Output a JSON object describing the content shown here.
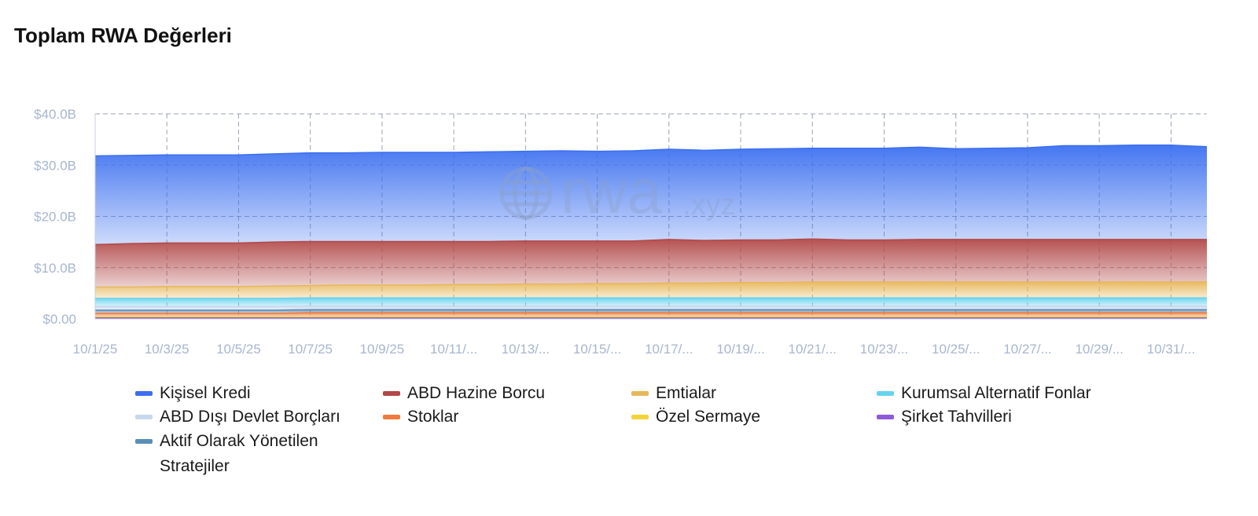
{
  "page": {
    "title": "Toplam RWA Değerleri"
  },
  "watermark": {
    "text": "rwa",
    "suffix": ".xyz",
    "icon": "globe-icon"
  },
  "chart_data": {
    "type": "area",
    "stacked": true,
    "title": "Toplam RWA Değerleri",
    "ylabel": "",
    "xlabel": "",
    "y_unit": "billion USD",
    "ylim": [
      0,
      40
    ],
    "y_ticks": [
      "$0.00",
      "$10.0B",
      "$20.0B",
      "$30.0B",
      "$40.0B"
    ],
    "y_tick_values": [
      0,
      10,
      20,
      30,
      40
    ],
    "x_tick_labels": [
      "10/1/25",
      "10/3/25",
      "10/5/25",
      "10/7/25",
      "10/9/25",
      "10/11/...",
      "10/13/...",
      "10/15/...",
      "10/17/...",
      "10/19/...",
      "10/21/...",
      "10/23/...",
      "10/25/...",
      "10/27/...",
      "10/29/...",
      "10/31/..."
    ],
    "grid": true,
    "legend_position": "bottom",
    "x": [
      "2025-10-01",
      "2025-10-02",
      "2025-10-03",
      "2025-10-04",
      "2025-10-05",
      "2025-10-06",
      "2025-10-07",
      "2025-10-08",
      "2025-10-09",
      "2025-10-10",
      "2025-10-11",
      "2025-10-12",
      "2025-10-13",
      "2025-10-14",
      "2025-10-15",
      "2025-10-16",
      "2025-10-17",
      "2025-10-18",
      "2025-10-19",
      "2025-10-20",
      "2025-10-21",
      "2025-10-22",
      "2025-10-23",
      "2025-10-24",
      "2025-10-25",
      "2025-10-26",
      "2025-10-27",
      "2025-10-28",
      "2025-10-29",
      "2025-10-30",
      "2025-10-31",
      "2025-11-01"
    ],
    "series": [
      {
        "name": "Şirket Tahvilleri",
        "color": "#8e5bd8",
        "values": [
          0.2,
          0.2,
          0.2,
          0.2,
          0.2,
          0.2,
          0.2,
          0.2,
          0.2,
          0.2,
          0.2,
          0.2,
          0.2,
          0.2,
          0.2,
          0.2,
          0.2,
          0.2,
          0.2,
          0.2,
          0.2,
          0.2,
          0.2,
          0.2,
          0.2,
          0.2,
          0.2,
          0.2,
          0.2,
          0.2,
          0.2,
          0.2
        ]
      },
      {
        "name": "Özel Sermaye",
        "color": "#f2d33a",
        "values": [
          0.3,
          0.3,
          0.3,
          0.3,
          0.3,
          0.3,
          0.3,
          0.3,
          0.3,
          0.3,
          0.3,
          0.3,
          0.3,
          0.3,
          0.3,
          0.3,
          0.3,
          0.3,
          0.3,
          0.3,
          0.3,
          0.3,
          0.3,
          0.3,
          0.3,
          0.3,
          0.3,
          0.3,
          0.3,
          0.3,
          0.3,
          0.3
        ]
      },
      {
        "name": "Stoklar",
        "color": "#f07a3c",
        "values": [
          0.6,
          0.6,
          0.6,
          0.6,
          0.6,
          0.6,
          0.7,
          0.7,
          0.7,
          0.7,
          0.7,
          0.7,
          0.7,
          0.7,
          0.7,
          0.7,
          0.7,
          0.7,
          0.7,
          0.7,
          0.7,
          0.7,
          0.7,
          0.7,
          0.7,
          0.7,
          0.7,
          0.7,
          0.7,
          0.7,
          0.7,
          0.7
        ]
      },
      {
        "name": "Aktif Olarak Yönetilen Stratejiler",
        "color": "#5b8db5",
        "values": [
          0.6,
          0.6,
          0.6,
          0.6,
          0.6,
          0.6,
          0.6,
          0.6,
          0.6,
          0.6,
          0.6,
          0.6,
          0.6,
          0.6,
          0.6,
          0.6,
          0.6,
          0.6,
          0.6,
          0.6,
          0.6,
          0.6,
          0.6,
          0.6,
          0.6,
          0.6,
          0.6,
          0.6,
          0.6,
          0.6,
          0.6,
          0.6
        ]
      },
      {
        "name": "ABD Dışı Devlet Borçları",
        "color": "#c7d7ee",
        "values": [
          0.7,
          0.7,
          0.7,
          0.7,
          0.7,
          0.7,
          0.7,
          0.7,
          0.7,
          0.7,
          0.7,
          0.7,
          0.7,
          0.7,
          0.7,
          0.7,
          0.7,
          0.7,
          0.7,
          0.7,
          0.7,
          0.7,
          0.7,
          0.7,
          0.7,
          0.7,
          0.7,
          0.7,
          0.7,
          0.7,
          0.7,
          0.7
        ]
      },
      {
        "name": "Kurumsal Alternatif Fonlar",
        "color": "#67d3ee",
        "values": [
          1.6,
          1.6,
          1.6,
          1.6,
          1.6,
          1.6,
          1.6,
          1.6,
          1.6,
          1.6,
          1.6,
          1.6,
          1.6,
          1.6,
          1.6,
          1.6,
          1.6,
          1.6,
          1.6,
          1.6,
          1.6,
          1.6,
          1.6,
          1.6,
          1.6,
          1.6,
          1.6,
          1.6,
          1.6,
          1.6,
          1.6,
          1.6
        ]
      },
      {
        "name": "Emtialar",
        "color": "#e7b75a",
        "values": [
          2.2,
          2.2,
          2.3,
          2.3,
          2.3,
          2.4,
          2.4,
          2.5,
          2.5,
          2.5,
          2.6,
          2.6,
          2.7,
          2.7,
          2.8,
          2.8,
          2.9,
          2.9,
          3.0,
          3.0,
          3.1,
          3.1,
          3.1,
          3.1,
          3.1,
          3.1,
          3.1,
          3.1,
          3.1,
          3.1,
          3.1,
          3.1
        ]
      },
      {
        "name": "ABD Hazine Borcu",
        "color": "#b24848",
        "values": [
          8.3,
          8.5,
          8.5,
          8.5,
          8.5,
          8.6,
          8.6,
          8.5,
          8.5,
          8.5,
          8.4,
          8.4,
          8.4,
          8.4,
          8.3,
          8.3,
          8.5,
          8.3,
          8.3,
          8.3,
          8.4,
          8.2,
          8.2,
          8.3,
          8.3,
          8.3,
          8.3,
          8.3,
          8.3,
          8.3,
          8.3,
          8.3
        ]
      },
      {
        "name": "Kişisel Kredi",
        "color": "#3b6ff0",
        "values": [
          17.3,
          17.2,
          17.2,
          17.2,
          17.2,
          17.2,
          17.3,
          17.3,
          17.4,
          17.4,
          17.4,
          17.5,
          17.5,
          17.6,
          17.5,
          17.6,
          17.6,
          17.6,
          17.7,
          17.8,
          17.7,
          17.9,
          17.9,
          18.0,
          17.7,
          17.8,
          17.9,
          18.3,
          18.3,
          18.4,
          18.4,
          18.1
        ]
      }
    ],
    "legend_order": [
      "Kişisel Kredi",
      "ABD Hazine Borcu",
      "Emtialar",
      "Kurumsal Alternatif Fonlar",
      "ABD Dışı Devlet Borçları",
      "Stoklar",
      "Özel Sermaye",
      "Şirket Tahvilleri",
      "Aktif Olarak Yönetilen Stratejiler"
    ]
  }
}
